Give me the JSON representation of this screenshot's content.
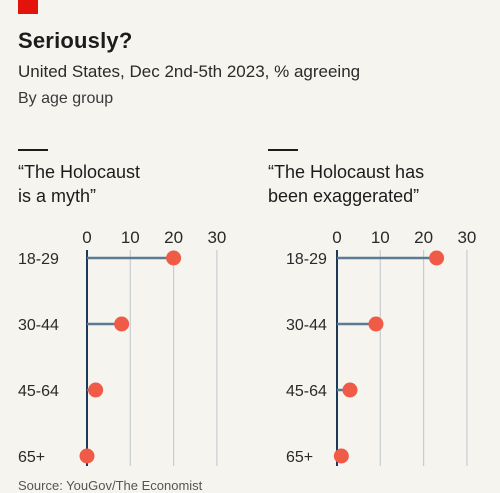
{
  "header": {
    "title": "Seriously?",
    "subtitle": "United States, Dec 2nd-5th 2023, % agreeing",
    "subsubtitle": "By age group",
    "source": "Source: YouGov/The Economist"
  },
  "colors": {
    "dot": "#ef5b47",
    "stem": "#5c7b93",
    "grid": "#c8ccd0",
    "axis": "#1c3a56",
    "brand_red": "#e3120b"
  },
  "chart_data": [
    {
      "type": "lollipop",
      "title_lines": [
        "“The Holocaust",
        "is a myth”"
      ],
      "categories": [
        "18-29",
        "30-44",
        "45-64",
        "65+"
      ],
      "values": [
        20,
        8,
        2,
        0
      ],
      "xlim": [
        0,
        30
      ],
      "xticks": [
        "0",
        "10",
        "20",
        "30"
      ],
      "grid": true
    },
    {
      "type": "lollipop",
      "title_lines": [
        "“The Holocaust has",
        "been exaggerated”"
      ],
      "categories": [
        "18-29",
        "30-44",
        "45-64",
        "65+"
      ],
      "values": [
        23,
        9,
        3,
        1
      ],
      "xlim": [
        0,
        30
      ],
      "xticks": [
        "0",
        "10",
        "20",
        "30"
      ],
      "grid": true
    }
  ]
}
